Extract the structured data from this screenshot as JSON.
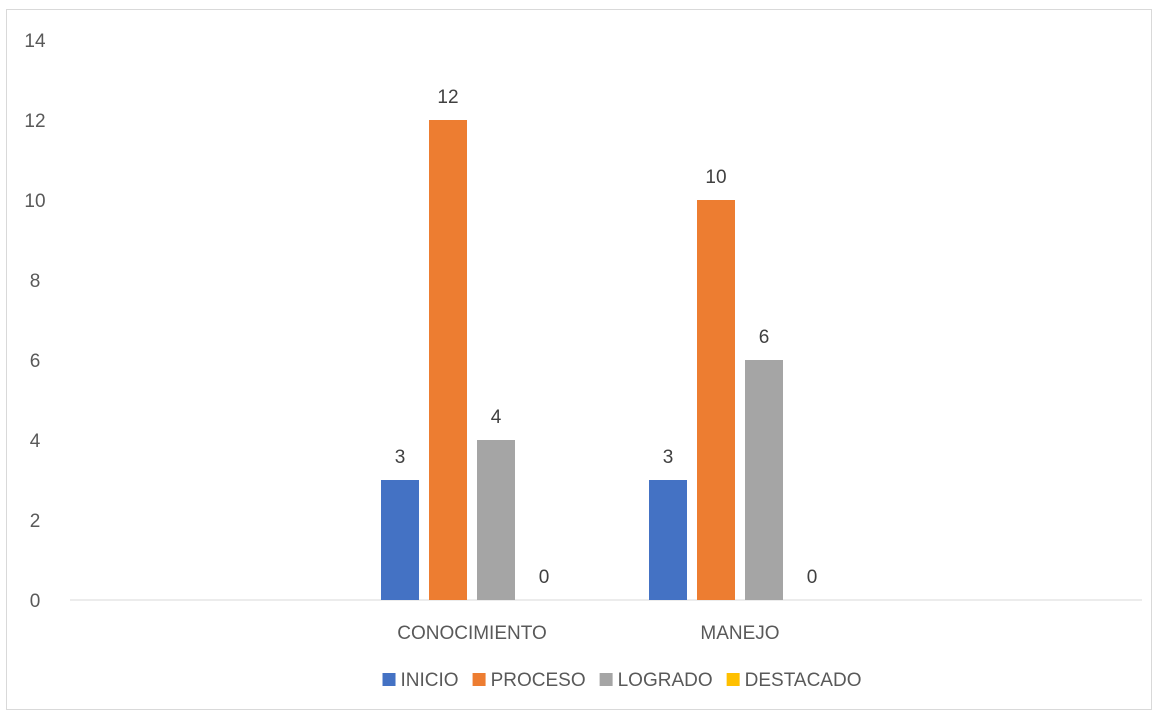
{
  "chart_data": {
    "type": "bar",
    "categories": [
      "CONOCIMIENTO",
      "MANEJO"
    ],
    "series": [
      {
        "name": "INICIO",
        "values": [
          3,
          3
        ],
        "color": "#4472c4"
      },
      {
        "name": "PROCESO",
        "values": [
          12,
          10
        ],
        "color": "#ed7d31"
      },
      {
        "name": "LOGRADO",
        "values": [
          4,
          6
        ],
        "color": "#a5a5a5"
      },
      {
        "name": "DESTACADO",
        "values": [
          0,
          0
        ],
        "color": "#ffc000"
      }
    ],
    "yticks": [
      0,
      2,
      4,
      6,
      8,
      10,
      12,
      14
    ],
    "ylim": [
      0,
      14
    ],
    "grid": false,
    "legend": "bottom",
    "data_labels": true
  }
}
